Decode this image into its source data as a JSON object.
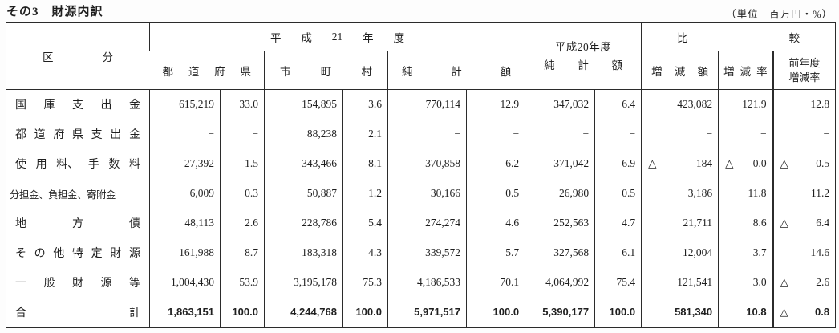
{
  "page": {
    "title": "その3　財源内訳",
    "unit_note": "（単位　百万円・%）"
  },
  "colors": {
    "border": "#2b2b2b",
    "text": "#1f1f1f",
    "background": "#ffffff"
  },
  "table": {
    "headers": {
      "category": "区分",
      "fy21_group": "平成21年度",
      "prefectures": "都道府県",
      "municipalities": "市町村",
      "net_total": "純計額",
      "fy20_line1": "平成20年度",
      "fy20_line2": "純計額",
      "comparison_group": "比較",
      "change_amount": "増減額",
      "change_rate": "増減率",
      "prev_year_rate_line1": "前年度",
      "prev_year_rate_line2": "増減率",
      "negative_mark": "△"
    },
    "rows": [
      {
        "label": "国庫支出金",
        "tight": false,
        "bold": false,
        "cells": [
          "615,219",
          "33.0",
          "154,895",
          "3.6",
          "770,114",
          "12.9",
          "347,032",
          "6.4",
          "423,082",
          "121.9",
          "12.8"
        ]
      },
      {
        "label": "都道府県支出金",
        "tight": false,
        "bold": false,
        "cells": [
          "−",
          "−",
          "88,238",
          "2.1",
          "−",
          "−",
          "−",
          "−",
          "−",
          "−",
          "−"
        ]
      },
      {
        "label": "使用料、手数料",
        "tight": false,
        "bold": false,
        "cells": [
          "27,392",
          "1.5",
          "343,466",
          "8.1",
          "370,858",
          "6.2",
          "371,042",
          "6.9",
          "△ 184",
          "△ 0.0",
          "△ 0.5"
        ]
      },
      {
        "label": "分担金、負担金、寄附金",
        "tight": true,
        "bold": false,
        "cells": [
          "6,009",
          "0.3",
          "50,887",
          "1.2",
          "30,166",
          "0.5",
          "26,980",
          "0.5",
          "3,186",
          "11.8",
          "11.2"
        ]
      },
      {
        "label": "地方債",
        "tight": false,
        "bold": false,
        "cells": [
          "48,113",
          "2.6",
          "228,786",
          "5.4",
          "274,274",
          "4.6",
          "252,563",
          "4.7",
          "21,711",
          "8.6",
          "△ 6.4"
        ]
      },
      {
        "label": "その他特定財源",
        "tight": false,
        "bold": false,
        "cells": [
          "161,988",
          "8.7",
          "183,318",
          "4.3",
          "339,572",
          "5.7",
          "327,568",
          "6.1",
          "12,004",
          "3.7",
          "14.6"
        ]
      },
      {
        "label": "一般財源等",
        "tight": false,
        "bold": false,
        "cells": [
          "1,004,430",
          "53.9",
          "3,195,178",
          "75.3",
          "4,186,533",
          "70.1",
          "4,064,992",
          "75.4",
          "121,541",
          "3.0",
          "△ 2.6"
        ]
      },
      {
        "label": "合計",
        "tight": false,
        "bold": true,
        "cells": [
          "1,863,151",
          "100.0",
          "4,244,768",
          "100.0",
          "5,971,517",
          "100.0",
          "5,390,177",
          "100.0",
          "581,340",
          "10.8",
          "△ 0.8"
        ]
      }
    ]
  }
}
